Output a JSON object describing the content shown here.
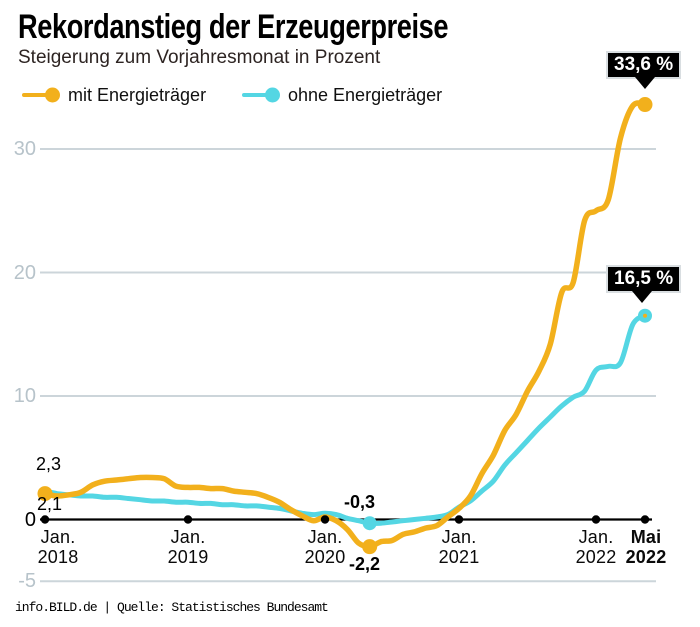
{
  "header": {
    "title": "Rekordanstieg der Erzeugerpreise",
    "subtitle": "Steigerung zum Vorjahresmonat in Prozent"
  },
  "legend": [
    {
      "label": "mit Energieträger",
      "color": "#f2b01c"
    },
    {
      "label": "ohne Energieträger",
      "color": "#54d6e3"
    }
  ],
  "annotations": {
    "start_above": "2,3",
    "start_below": "2,1",
    "dip_above": "-0,3",
    "dip_below": "-2,2",
    "callout_mit": "33,6 %",
    "callout_ohne": "16,5 %"
  },
  "footer": {
    "text": "info.BILD.de | Quelle: Statistisches Bundesamt"
  },
  "colors": {
    "mit": "#f2b01c",
    "ohne": "#54d6e3",
    "grid": "#ccd5da",
    "axis": "#000000",
    "y_label_gray": "#b7c3ca",
    "callout_bg": "#000000",
    "callout_text": "#ffffff"
  },
  "chart_data": {
    "type": "line",
    "title": "Rekordanstieg der Erzeugerpreise",
    "subtitle": "Steigerung zum Vorjahresmonat in Prozent",
    "ylabel": "Prozent",
    "ylim": [
      -5,
      35
    ],
    "grid": "horizontal",
    "legend_position": "top",
    "x_unit": "Monat (Jan. 2018 bis Mai 2022)",
    "x_tick_months": [
      0,
      12,
      24,
      36,
      48,
      52
    ],
    "x_tick_labels": [
      {
        "line1": "Jan.",
        "line2": "2018",
        "bold": false
      },
      {
        "line1": "Jan.",
        "line2": "2019",
        "bold": false
      },
      {
        "line1": "Jan.",
        "line2": "2020",
        "bold": false
      },
      {
        "line1": "Jan.",
        "line2": "2021",
        "bold": false
      },
      {
        "line1": "Jan.",
        "line2": "2022",
        "bold": false
      },
      {
        "line1": "Mai",
        "line2": "2022",
        "bold": true
      }
    ],
    "y_ticks": [
      {
        "value": 30,
        "label": "30"
      },
      {
        "value": 20,
        "label": "20"
      },
      {
        "value": 10,
        "label": "10"
      },
      {
        "value": 0,
        "label": "0"
      },
      {
        "value": -5,
        "label": "-5"
      }
    ],
    "series": [
      {
        "name": "mit Energieträger",
        "color": "#f2b01c",
        "start_value": 2.1,
        "min_value": -2.2,
        "end_value": 33.6,
        "values": [
          2.1,
          1.9,
          2.0,
          2.2,
          2.8,
          3.1,
          3.2,
          3.3,
          3.4,
          3.4,
          3.3,
          2.7,
          2.6,
          2.6,
          2.5,
          2.5,
          2.3,
          2.2,
          2.1,
          1.8,
          1.4,
          0.8,
          0.3,
          -0.1,
          0.2,
          -0.1,
          -0.8,
          -1.9,
          -2.2,
          -1.8,
          -1.7,
          -1.2,
          -1.0,
          -0.7,
          -0.5,
          0.2,
          0.9,
          1.9,
          3.7,
          5.2,
          7.2,
          8.5,
          10.4,
          12.0,
          14.2,
          18.4,
          19.2,
          24.2,
          25.0,
          25.9,
          30.9,
          33.5,
          33.6
        ]
      },
      {
        "name": "ohne Energieträger",
        "color": "#54d6e3",
        "start_value": 2.3,
        "min_value": -0.3,
        "end_value": 16.5,
        "values": [
          2.3,
          2.1,
          2.0,
          1.9,
          1.9,
          1.8,
          1.8,
          1.7,
          1.6,
          1.5,
          1.5,
          1.4,
          1.4,
          1.3,
          1.3,
          1.2,
          1.2,
          1.1,
          1.1,
          1.0,
          0.9,
          0.7,
          0.5,
          0.4,
          0.5,
          0.4,
          0.1,
          -0.1,
          -0.3,
          -0.3,
          -0.2,
          -0.1,
          0.0,
          0.1,
          0.2,
          0.4,
          1.0,
          1.5,
          2.3,
          3.1,
          4.4,
          5.4,
          6.4,
          7.4,
          8.3,
          9.2,
          9.9,
          10.4,
          12.1,
          12.4,
          12.7,
          15.8,
          16.5
        ]
      }
    ],
    "markers": [
      {
        "series": 0,
        "month": 0
      },
      {
        "series": 0,
        "month": 28
      },
      {
        "series": 1,
        "month": 28
      },
      {
        "series": 0,
        "month": 52
      },
      {
        "series": 1,
        "month": 52,
        "inner_dot": true
      }
    ]
  }
}
